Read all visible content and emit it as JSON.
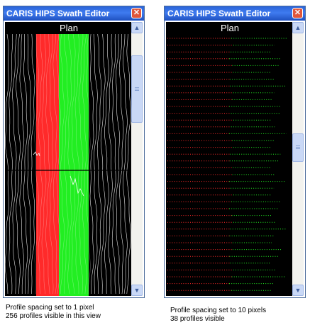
{
  "windows": [
    {
      "title": "CARIS HIPS Swath Editor",
      "view_label": "Plan",
      "close_symbol": "✕",
      "scroll_up_symbol": "▲",
      "scroll_down_symbol": "▼",
      "scroll_position": 0.12,
      "caption_line1": "Profile spacing set to 1 pixel",
      "caption_line2": "256 profiles visible in this view"
    },
    {
      "title": "CARIS HIPS Swath Editor",
      "view_label": "Plan",
      "close_symbol": "✕",
      "scroll_up_symbol": "▲",
      "scroll_down_symbol": "▼",
      "scroll_position": 0.45,
      "caption_line1": "Profile spacing set to 10 pixels",
      "caption_line2": "38 profiles visible"
    }
  ],
  "colors": {
    "titlebar": "#2a64d8",
    "port_soundings": "#ff2a2a",
    "starboard_soundings": "#22ee22",
    "profile_lines": "#ffffff",
    "background": "#000000"
  }
}
